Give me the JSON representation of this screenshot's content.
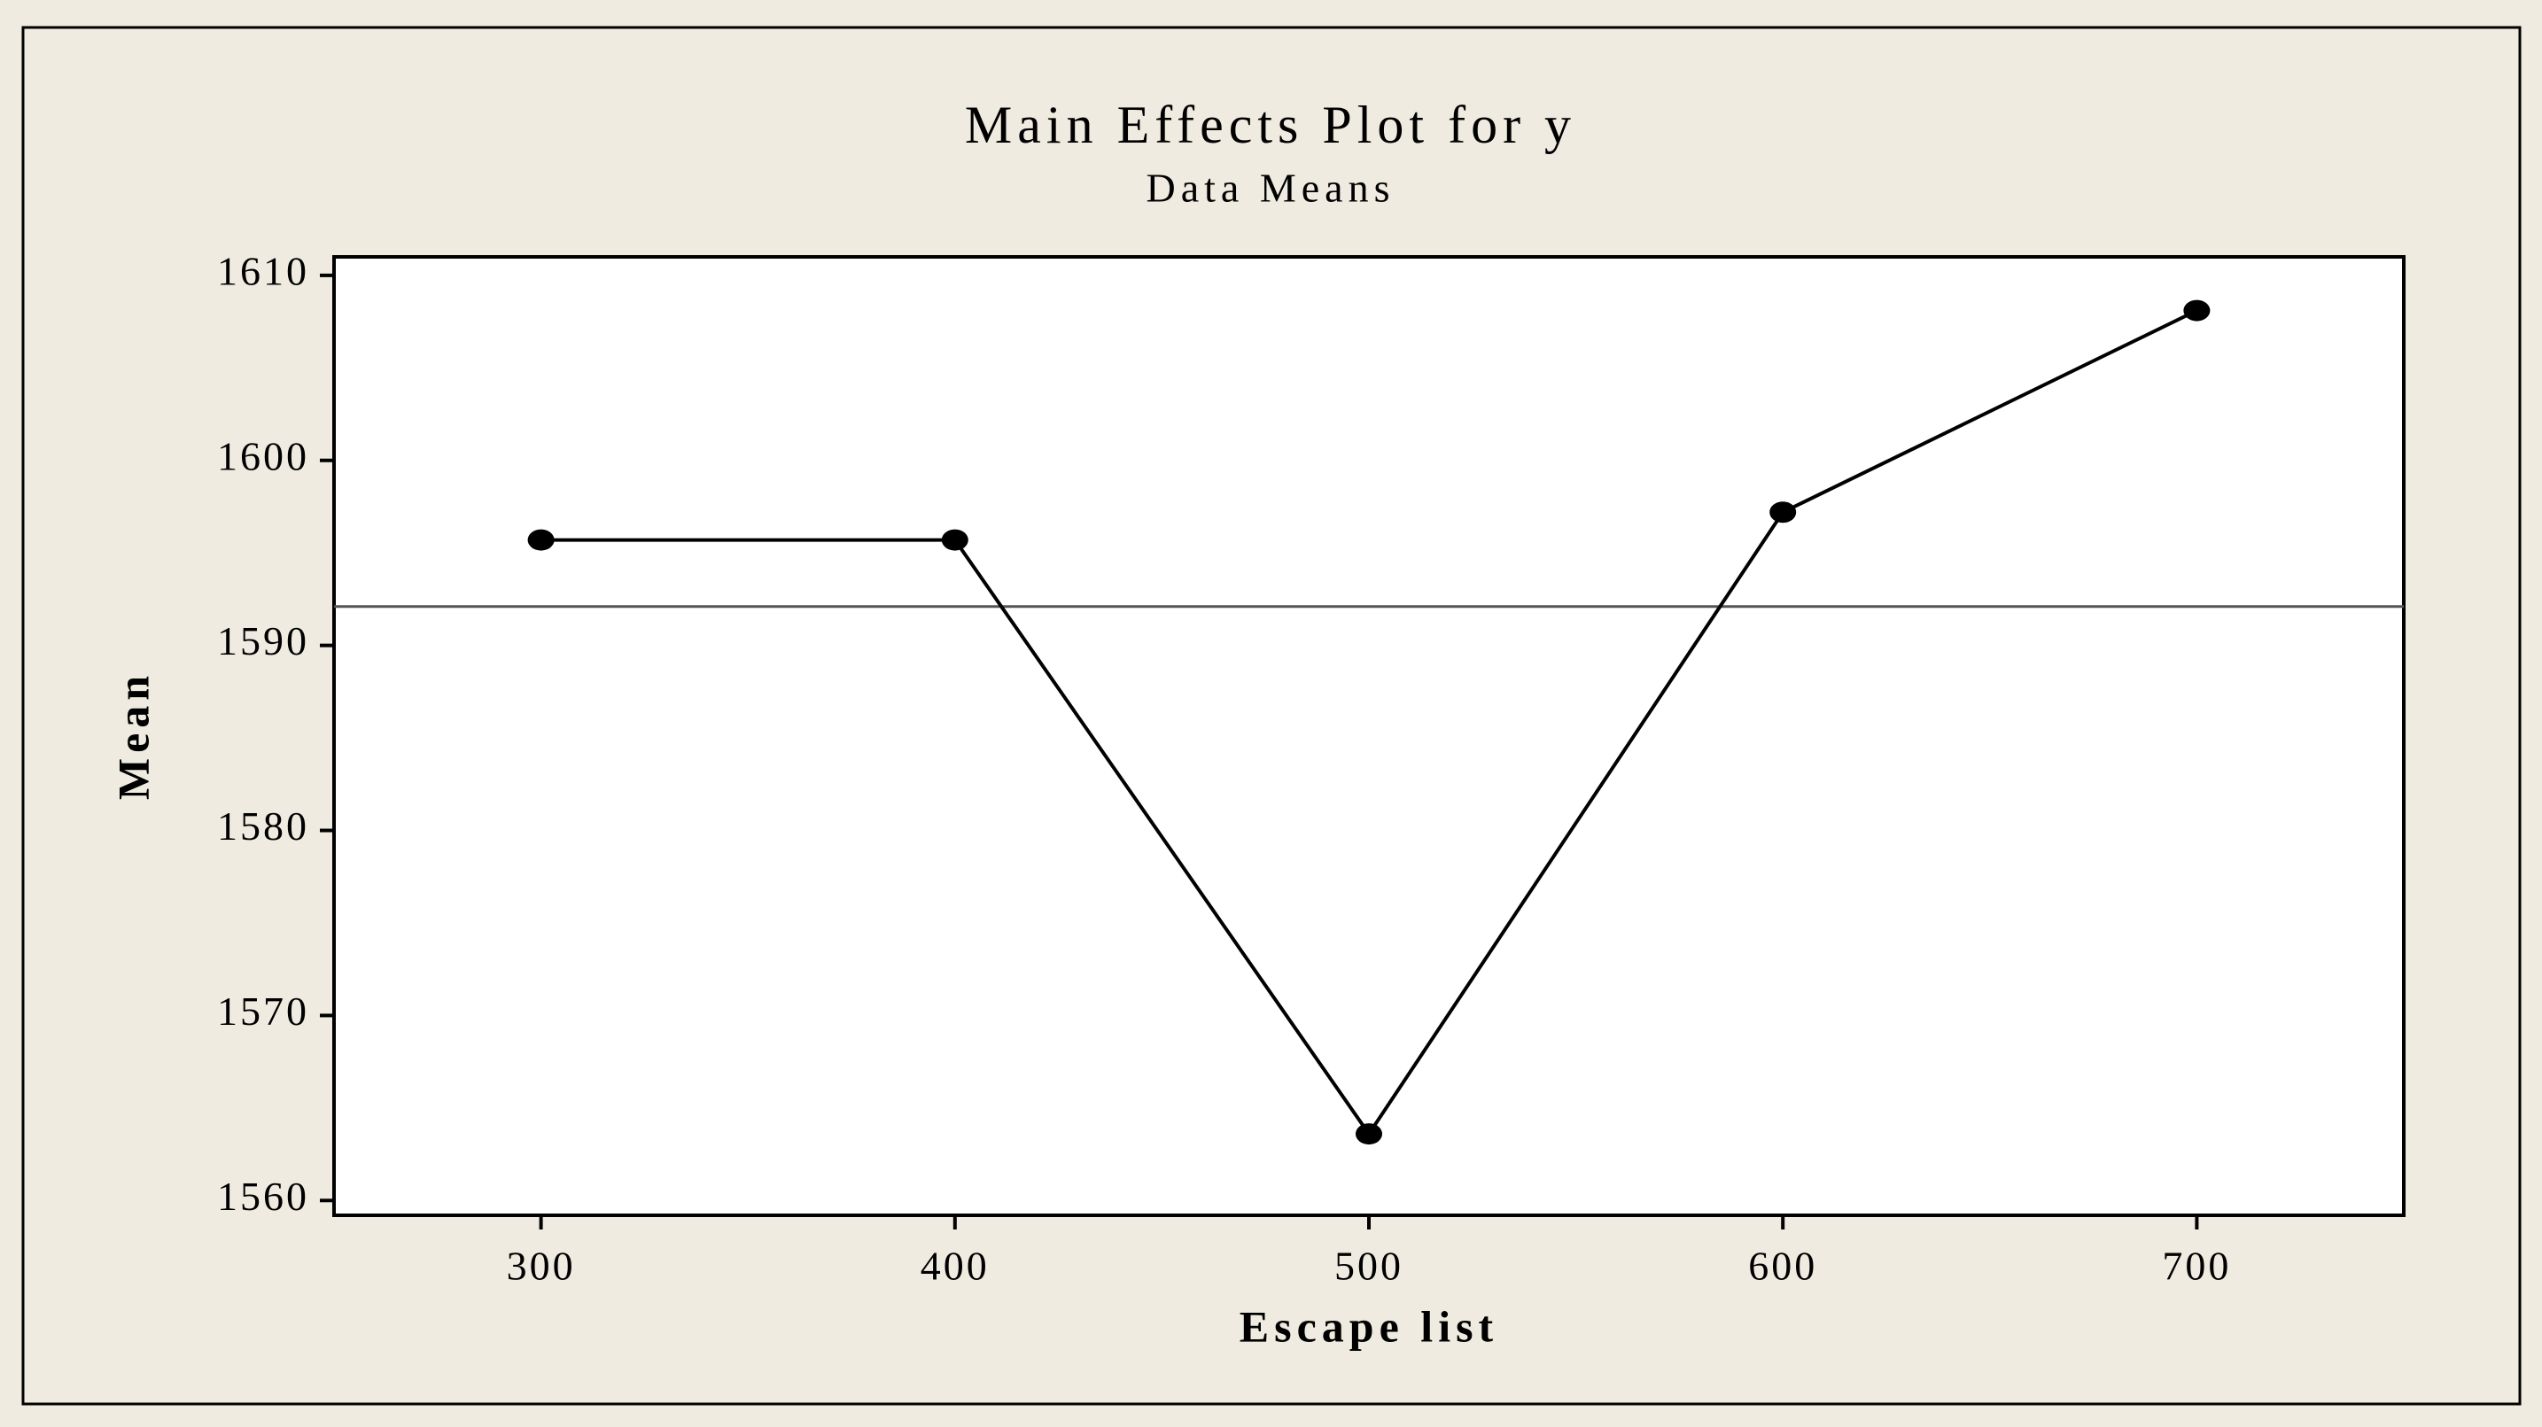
{
  "chart_data": {
    "type": "line",
    "title": "Main Effects Plot for y",
    "subtitle": "Data Means",
    "x_label": "Escape list",
    "y_label": "Mean",
    "x": [
      300,
      400,
      500,
      600,
      700
    ],
    "values": [
      1595.7,
      1595.7,
      1563.6,
      1597.2,
      1608.1
    ],
    "color": "#000000",
    "marker": "circle",
    "hline": 1592.1,
    "xlim": [
      250,
      750
    ],
    "xticks": [
      300,
      400,
      500,
      600,
      700
    ],
    "ylim": [
      1559.2,
      1611
    ],
    "yticks": [
      1560,
      1570,
      1580,
      1590,
      1600,
      1610
    ]
  }
}
